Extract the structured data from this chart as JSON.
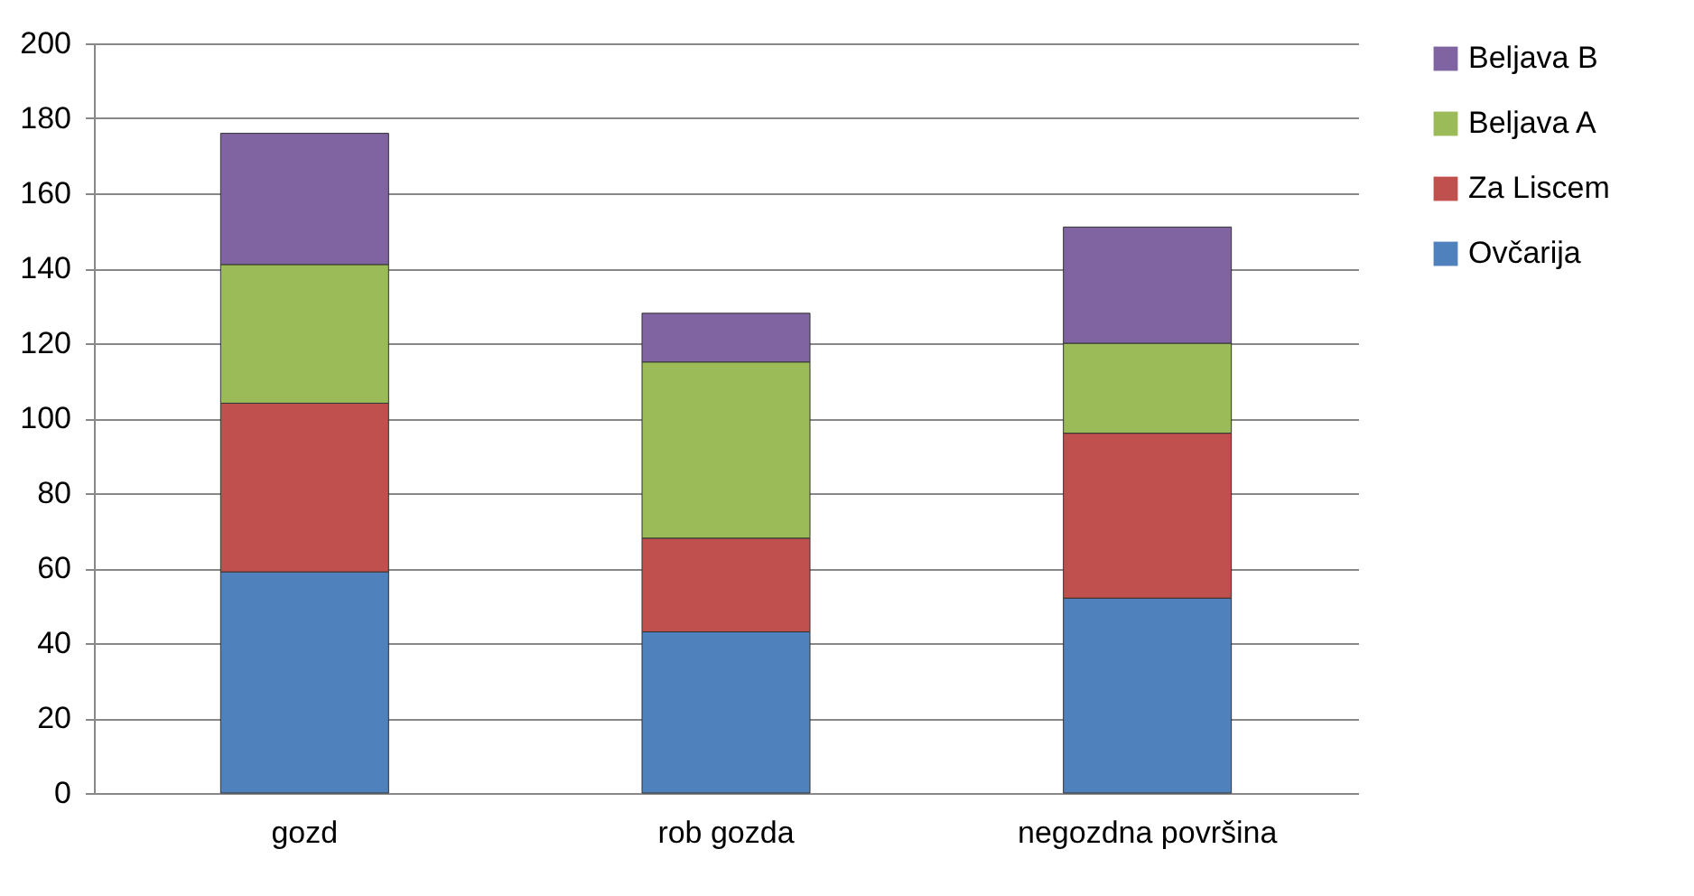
{
  "chart_data": {
    "type": "bar",
    "stacked": true,
    "categories": [
      "gozd",
      "rob gozda",
      "negozdna površina"
    ],
    "series": [
      {
        "name": "Ovčarija",
        "color": "#4f81bd",
        "values": [
          59,
          43,
          52
        ]
      },
      {
        "name": "Za Liscem",
        "color": "#c0504d",
        "values": [
          45,
          25,
          44
        ]
      },
      {
        "name": "Beljava A",
        "color": "#9bbb59",
        "values": [
          37,
          47,
          24
        ]
      },
      {
        "name": "Beljava B",
        "color": "#8064a2",
        "values": [
          35,
          13,
          31
        ]
      }
    ],
    "ylim": [
      0,
      200
    ],
    "yticks": [
      0,
      20,
      40,
      60,
      80,
      100,
      120,
      140,
      160,
      180,
      200
    ],
    "grid": "y",
    "legend": "right"
  }
}
